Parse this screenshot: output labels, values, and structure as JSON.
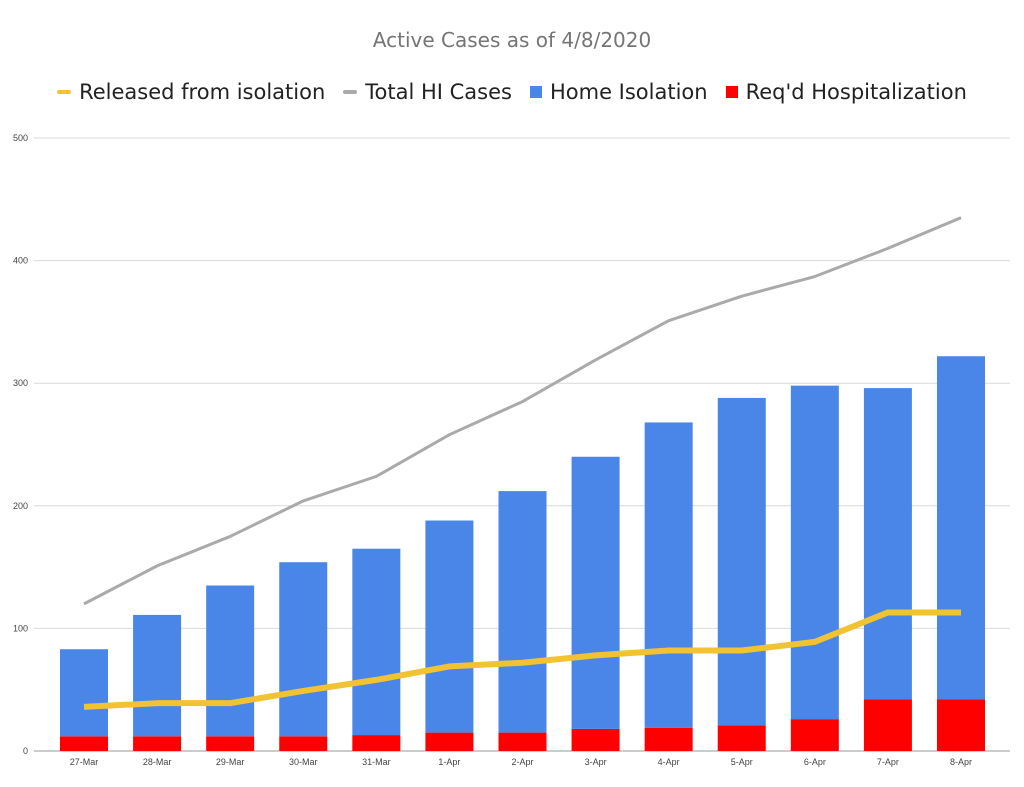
{
  "colors": {
    "home_isolation": "#4a86e8",
    "hospitalization": "#ff0000",
    "total_cases": "#aaaaaa",
    "released": "#f1c232",
    "grid": "#d9d9d9"
  },
  "chart_data": {
    "type": "bar",
    "stacked": true,
    "title": "Active Cases as of 4/8/2020",
    "xlabel": "",
    "ylabel": "",
    "ylim": [
      0,
      500
    ],
    "yticks": [
      "0",
      "100",
      "200",
      "300",
      "400",
      "500"
    ],
    "grid": true,
    "legend_position": "top",
    "categories": [
      "27-Mar",
      "28-Mar",
      "29-Mar",
      "30-Mar",
      "31-Mar",
      "1-Apr",
      "2-Apr",
      "3-Apr",
      "4-Apr",
      "5-Apr",
      "6-Apr",
      "7-Apr",
      "8-Apr"
    ],
    "series": [
      {
        "name": "Released from isolation",
        "kind": "line",
        "values": [
          36,
          39,
          39,
          49,
          58,
          69,
          72,
          78,
          82,
          82,
          89,
          113,
          113
        ]
      },
      {
        "name": "Total HI Cases",
        "kind": "line",
        "values": [
          120,
          151,
          175,
          204,
          224,
          258,
          285,
          319,
          351,
          371,
          387,
          410,
          435
        ]
      },
      {
        "name": "Home Isolation",
        "kind": "bar",
        "values": [
          71,
          99,
          123,
          142,
          152,
          173,
          197,
          222,
          249,
          267,
          272,
          254,
          280
        ]
      },
      {
        "name": "Req'd Hospitalization",
        "kind": "bar",
        "values": [
          12,
          12,
          12,
          12,
          13,
          15,
          15,
          18,
          19,
          21,
          26,
          42,
          42
        ]
      }
    ]
  }
}
